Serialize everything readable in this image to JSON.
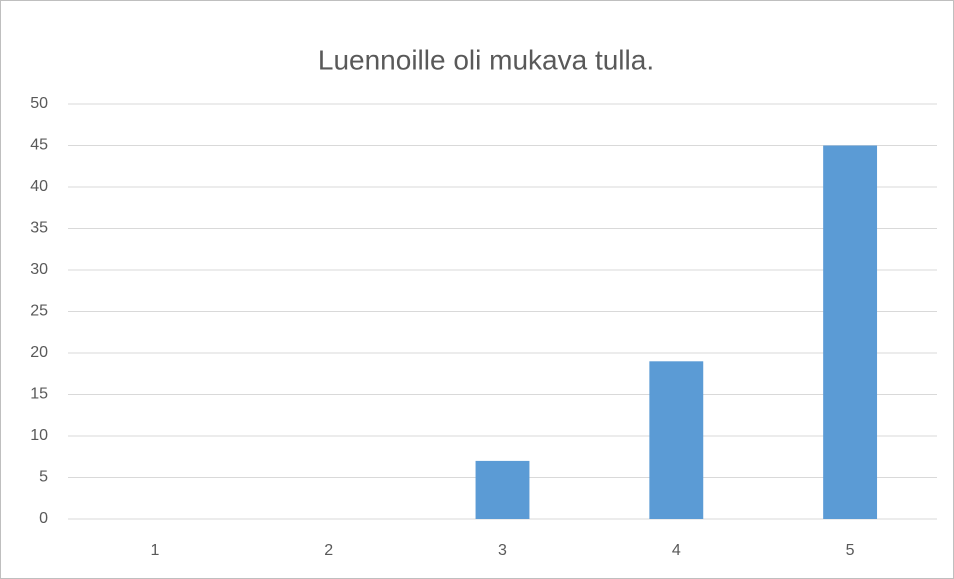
{
  "chart_data": {
    "type": "bar",
    "title": "Luennoille oli mukava tulla.",
    "categories": [
      "1",
      "2",
      "3",
      "4",
      "5"
    ],
    "values": [
      0,
      0,
      7,
      19,
      45
    ],
    "color": "#5b9bd5",
    "ylim": [
      0,
      50
    ],
    "yticks": [
      0,
      5,
      10,
      15,
      20,
      25,
      30,
      35,
      40,
      45,
      50
    ],
    "grid": true
  }
}
